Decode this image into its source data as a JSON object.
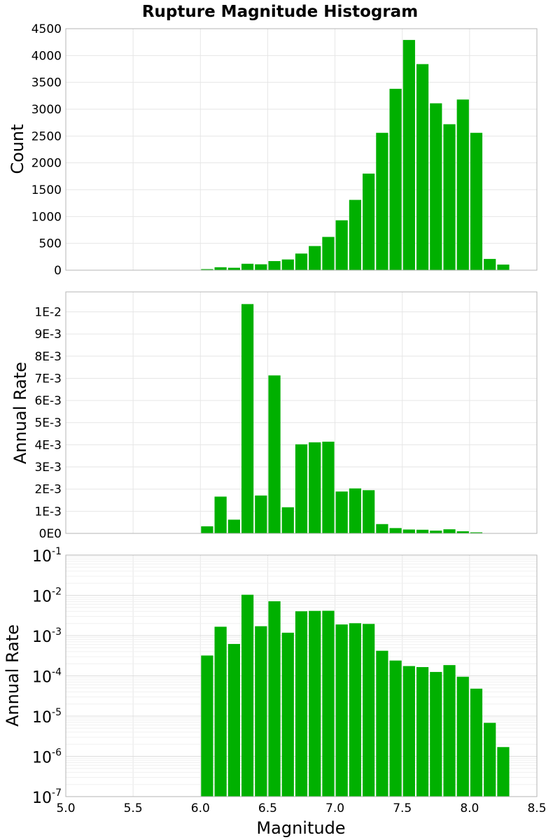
{
  "chart_data": [
    {
      "panel": "top",
      "type": "bar",
      "title": "Rupture Magnitude Histogram",
      "ylabel": "Count",
      "xlim": [
        5.0,
        8.5
      ],
      "ylim": [
        0,
        4500
      ],
      "bin_width": 0.1,
      "y_ticks": [
        "0",
        "500",
        "1000",
        "1500",
        "2000",
        "2500",
        "3000",
        "3500",
        "4000",
        "4500"
      ],
      "y_tick_values": [
        0,
        500,
        1000,
        1500,
        2000,
        2500,
        3000,
        3500,
        4000,
        4500
      ],
      "grid": true,
      "color": "#00b000",
      "x": [
        6.05,
        6.15,
        6.25,
        6.35,
        6.45,
        6.55,
        6.65,
        6.75,
        6.85,
        6.95,
        7.05,
        7.15,
        7.25,
        7.35,
        7.45,
        7.55,
        7.65,
        7.75,
        7.85,
        7.95,
        8.05,
        8.15,
        8.25,
        8.35
      ],
      "values": [
        20,
        55,
        45,
        120,
        110,
        170,
        200,
        310,
        450,
        620,
        930,
        1310,
        1800,
        2560,
        3380,
        4290,
        3840,
        3110,
        2720,
        3180,
        2560,
        210,
        105,
        5
      ]
    },
    {
      "panel": "middle",
      "type": "bar",
      "ylabel": "Annual Rate",
      "xlim": [
        5.0,
        8.5
      ],
      "ylim": [
        0,
        0.0109
      ],
      "bin_width": 0.1,
      "y_ticks": [
        "0E0",
        "1E-3",
        "2E-3",
        "3E-3",
        "4E-3",
        "5E-3",
        "6E-3",
        "7E-3",
        "8E-3",
        "9E-3",
        "1E-2"
      ],
      "y_tick_values": [
        0,
        0.001,
        0.002,
        0.003,
        0.004,
        0.005,
        0.006,
        0.007,
        0.008,
        0.009,
        0.01
      ],
      "grid": true,
      "color": "#00b000",
      "x": [
        6.05,
        6.15,
        6.25,
        6.35,
        6.45,
        6.55,
        6.65,
        6.75,
        6.85,
        6.95,
        7.05,
        7.15,
        7.25,
        7.35,
        7.45,
        7.55,
        7.65,
        7.75,
        7.85,
        7.95,
        8.05,
        8.15,
        8.25,
        8.35
      ],
      "values": [
        0.00032,
        0.00166,
        0.00062,
        0.01035,
        0.00171,
        0.00713,
        0.00118,
        0.00402,
        0.00411,
        0.00414,
        0.00189,
        0.00203,
        0.00195,
        0.00042,
        0.00024,
        0.000175,
        0.000165,
        0.000125,
        0.000185,
        9.5e-05,
        4.8e-05,
        6.8e-06,
        1.7e-06,
        1e-07
      ]
    },
    {
      "panel": "bottom",
      "type": "bar",
      "scale": "log",
      "ylabel": "Annual Rate",
      "xlabel": "Magnitude",
      "xlim": [
        5.0,
        8.5
      ],
      "ylim_exp": [
        -7,
        -1
      ],
      "bin_width": 0.1,
      "y_tick_base": "10",
      "y_tick_exponents": [
        "-7",
        "-6",
        "-5",
        "-4",
        "-3",
        "-2",
        "-1"
      ],
      "x_ticks": [
        "5.0",
        "5.5",
        "6.0",
        "6.5",
        "7.0",
        "7.5",
        "8.0",
        "8.5"
      ],
      "x_tick_values": [
        5.0,
        5.5,
        6.0,
        6.5,
        7.0,
        7.5,
        8.0,
        8.5
      ],
      "grid": true,
      "color": "#00b000",
      "x": [
        6.05,
        6.15,
        6.25,
        6.35,
        6.45,
        6.55,
        6.65,
        6.75,
        6.85,
        6.95,
        7.05,
        7.15,
        7.25,
        7.35,
        7.45,
        7.55,
        7.65,
        7.75,
        7.85,
        7.95,
        8.05,
        8.15,
        8.25,
        8.35
      ],
      "values": [
        0.00032,
        0.00166,
        0.00062,
        0.01035,
        0.00171,
        0.00713,
        0.00118,
        0.00402,
        0.00411,
        0.00414,
        0.00189,
        0.00203,
        0.00195,
        0.00042,
        0.00024,
        0.000175,
        0.000165,
        0.000125,
        0.000185,
        9.5e-05,
        4.8e-05,
        6.8e-06,
        1.7e-06,
        1e-07
      ]
    }
  ]
}
